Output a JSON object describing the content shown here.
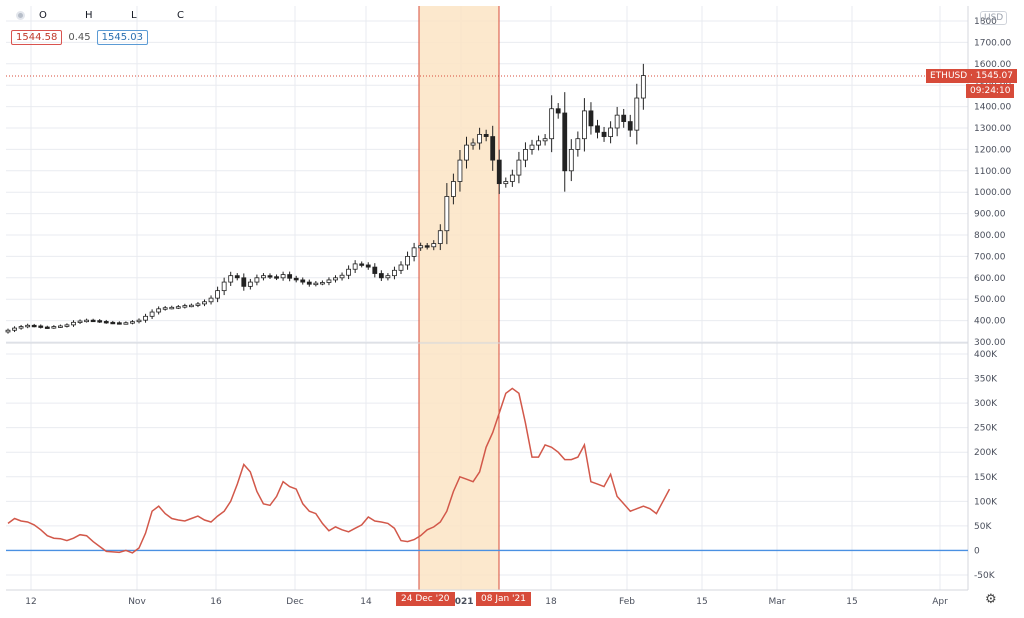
{
  "toolbar": {
    "ohlc_keys": [
      "O",
      "H",
      "L",
      "C"
    ],
    "value_1": "1544.58",
    "value_2": "0.45",
    "value_3": "1545.03",
    "currency": "USD"
  },
  "tags": {
    "symbol_price": "ETHUSD · 1545.07",
    "countdown": "09:24:10",
    "range_start": "24 Dec '20",
    "range_end": "08 Jan '21"
  },
  "colors": {
    "accent_red": "#d74b3a",
    "highlight": "#fbe4c4",
    "line_red": "#d2584a",
    "baseline_blue": "#4a90e2"
  },
  "chart_data": [
    {
      "type": "candlestick",
      "title": "",
      "ylabel": "",
      "ylim": [
        300,
        1800
      ],
      "yticks": [
        "1800",
        "1700.00",
        "1600.00",
        "1500.00",
        "1400.00",
        "1300.00",
        "1200.00",
        "1100.00",
        "1000.00",
        "900.00",
        "800.00",
        "700.00",
        "600.00",
        "500.00",
        "400.00",
        "300.00"
      ],
      "highlight_range": [
        "24 Dec '20",
        "08 Jan '21"
      ],
      "last_price": 1545.07,
      "closes": [
        355,
        365,
        372,
        378,
        375,
        370,
        368,
        372,
        375,
        380,
        392,
        398,
        402,
        400,
        396,
        392,
        390,
        388,
        390,
        395,
        402,
        420,
        440,
        455,
        460,
        462,
        465,
        470,
        472,
        478,
        488,
        505,
        540,
        580,
        610,
        600,
        560,
        580,
        600,
        610,
        605,
        600,
        615,
        598,
        590,
        580,
        570,
        575,
        578,
        590,
        600,
        612,
        640,
        665,
        660,
        650,
        620,
        600,
        610,
        635,
        660,
        700,
        740,
        750,
        745,
        760,
        820,
        980,
        1050,
        1150,
        1220,
        1230,
        1270,
        1260,
        1150,
        1040,
        1050,
        1080,
        1150,
        1200,
        1220,
        1240,
        1250,
        1390,
        1370,
        1100,
        1200,
        1250,
        1380,
        1310,
        1280,
        1260,
        1300,
        1360,
        1330,
        1290,
        1440,
        1545
      ],
      "x_ticks": [
        "12",
        "Nov",
        "16",
        "Dec",
        "14",
        "2021",
        "18",
        "Feb",
        "15",
        "Mar",
        "15",
        "Apr"
      ]
    },
    {
      "type": "line",
      "title": "",
      "ylabel": "",
      "ylim": [
        -50000,
        400000
      ],
      "yticks": [
        "400K",
        "350K",
        "300K",
        "250K",
        "200K",
        "150K",
        "100K",
        "50K",
        "0",
        "-50K"
      ],
      "baseline": 0,
      "values": [
        55000,
        65000,
        60000,
        58000,
        52000,
        42000,
        30000,
        25000,
        24000,
        20000,
        25000,
        32000,
        30000,
        18000,
        8000,
        -2000,
        -3000,
        -4000,
        0,
        -5000,
        5000,
        35000,
        80000,
        90000,
        75000,
        65000,
        62000,
        60000,
        65000,
        70000,
        62000,
        58000,
        70000,
        80000,
        100000,
        135000,
        175000,
        160000,
        120000,
        95000,
        92000,
        110000,
        140000,
        130000,
        125000,
        95000,
        80000,
        75000,
        55000,
        40000,
        48000,
        42000,
        38000,
        45000,
        52000,
        68000,
        60000,
        58000,
        55000,
        45000,
        20000,
        18000,
        22000,
        30000,
        42000,
        48000,
        58000,
        80000,
        120000,
        150000,
        145000,
        140000,
        160000,
        210000,
        240000,
        280000,
        320000,
        330000,
        320000,
        260000,
        190000,
        190000,
        215000,
        210000,
        200000,
        185000,
        185000,
        190000,
        215000,
        140000,
        135000,
        130000,
        155000,
        110000,
        95000,
        80000,
        85000,
        90000,
        85000,
        75000,
        100000,
        125000
      ]
    }
  ]
}
